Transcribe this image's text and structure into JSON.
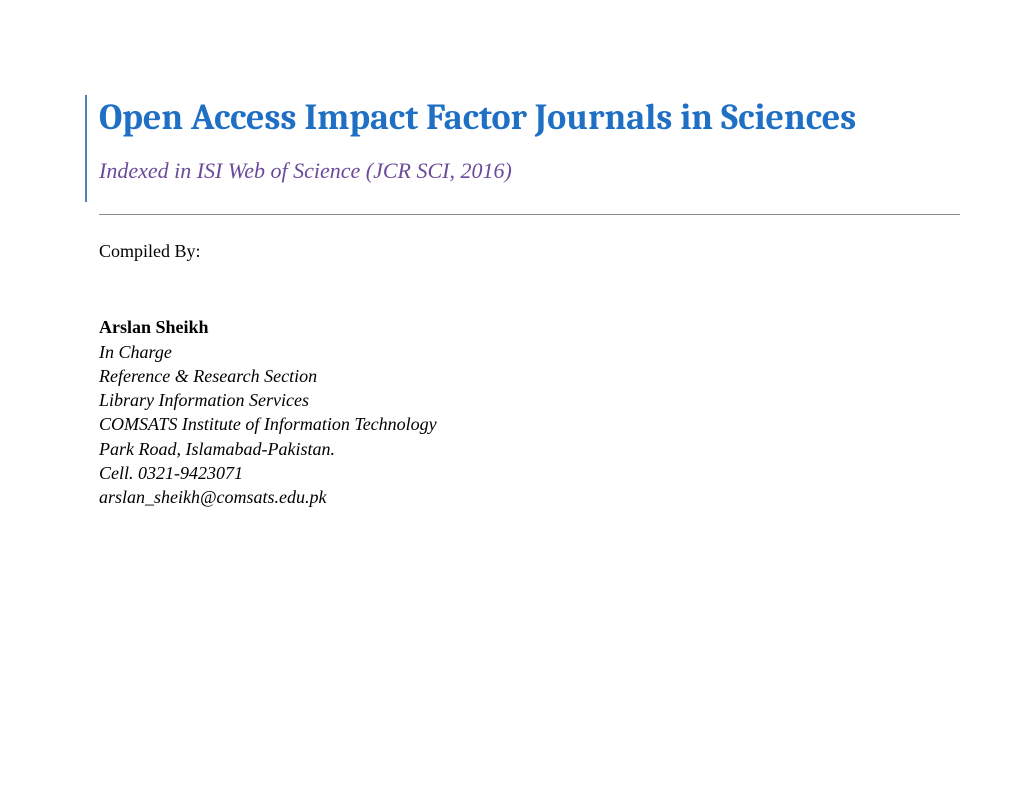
{
  "document": {
    "title": "Open Access Impact Factor Journals in Sciences",
    "subtitle": "Indexed in ISI Web of Science (JCR SCI, 2016)",
    "compiled_by_label": "Compiled By:",
    "author": {
      "name": "Arslan Sheikh",
      "role": "In Charge",
      "section": "Reference & Research Section",
      "dept": "Library Information Services",
      "institute": "COMSATS Institute of Information Technology",
      "address": "Park Road, Islamabad-Pakistan.",
      "cell": "Cell. 0321-9423071",
      "email": "arslan_sheikh@comsats.edu.pk"
    },
    "colors": {
      "title_color": "#1f6fc4",
      "subtitle_color": "#6b4a9a",
      "border_color": "#4f81bd",
      "text_color": "#000000",
      "background": "#ffffff",
      "hr_color": "#888888"
    },
    "fonts": {
      "title_family": "Cambria",
      "title_size_pt": 28,
      "title_weight": "bold",
      "subtitle_family": "Times New Roman",
      "subtitle_size_pt": 16,
      "subtitle_style": "italic",
      "body_family": "Times New Roman",
      "body_size_pt": 13
    }
  }
}
